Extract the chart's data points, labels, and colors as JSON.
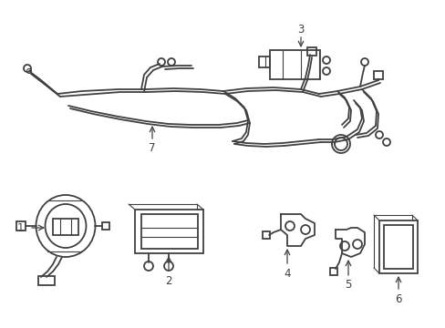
{
  "background_color": "#ffffff",
  "line_color": "#404040",
  "line_width": 1.3,
  "thin_lw": 0.8,
  "label_fontsize": 8.5
}
